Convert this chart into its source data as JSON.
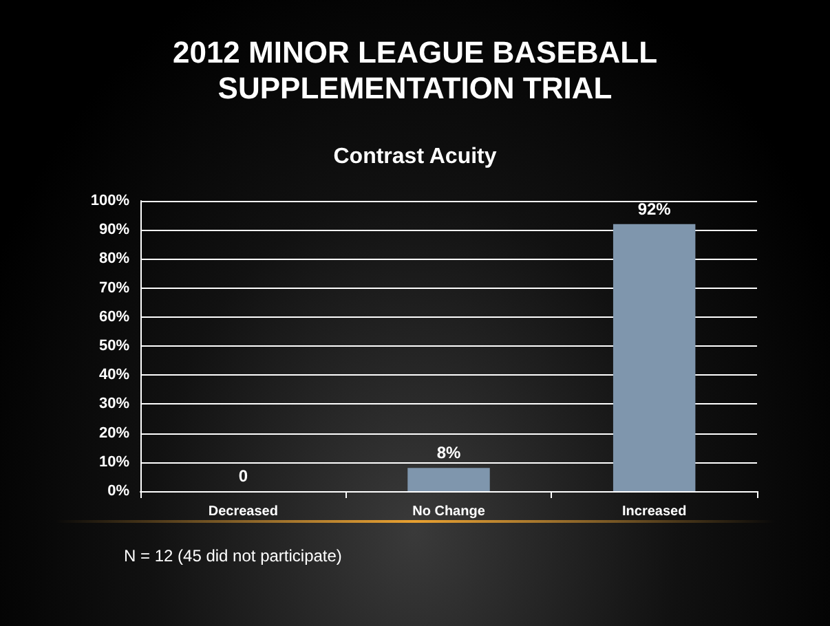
{
  "chart_data": {
    "type": "bar",
    "title": "2012 MINOR LEAGUE BASEBALL\nSUPPLEMENTATION TRIAL",
    "subtitle": "Contrast Acuity",
    "categories": [
      "Decreased",
      "No Change",
      "Increased"
    ],
    "values": [
      0,
      8,
      92
    ],
    "color": "#7f96ad",
    "value_labels": [
      "0",
      "8%",
      "92%"
    ],
    "ylim": [
      0,
      100
    ],
    "yticks": [
      {
        "value": 0,
        "label": "0%"
      },
      {
        "value": 10,
        "label": "10%"
      },
      {
        "value": 20,
        "label": "20%"
      },
      {
        "value": 30,
        "label": "30%"
      },
      {
        "value": 40,
        "label": "40%"
      },
      {
        "value": 50,
        "label": "50%"
      },
      {
        "value": 60,
        "label": "60%"
      },
      {
        "value": 70,
        "label": "70%"
      },
      {
        "value": 80,
        "label": "80%"
      },
      {
        "value": 90,
        "label": "90%"
      },
      {
        "value": 100,
        "label": "100%"
      }
    ],
    "grid": "y",
    "annotations": [
      "N = 12 (45 did not participate)"
    ]
  }
}
